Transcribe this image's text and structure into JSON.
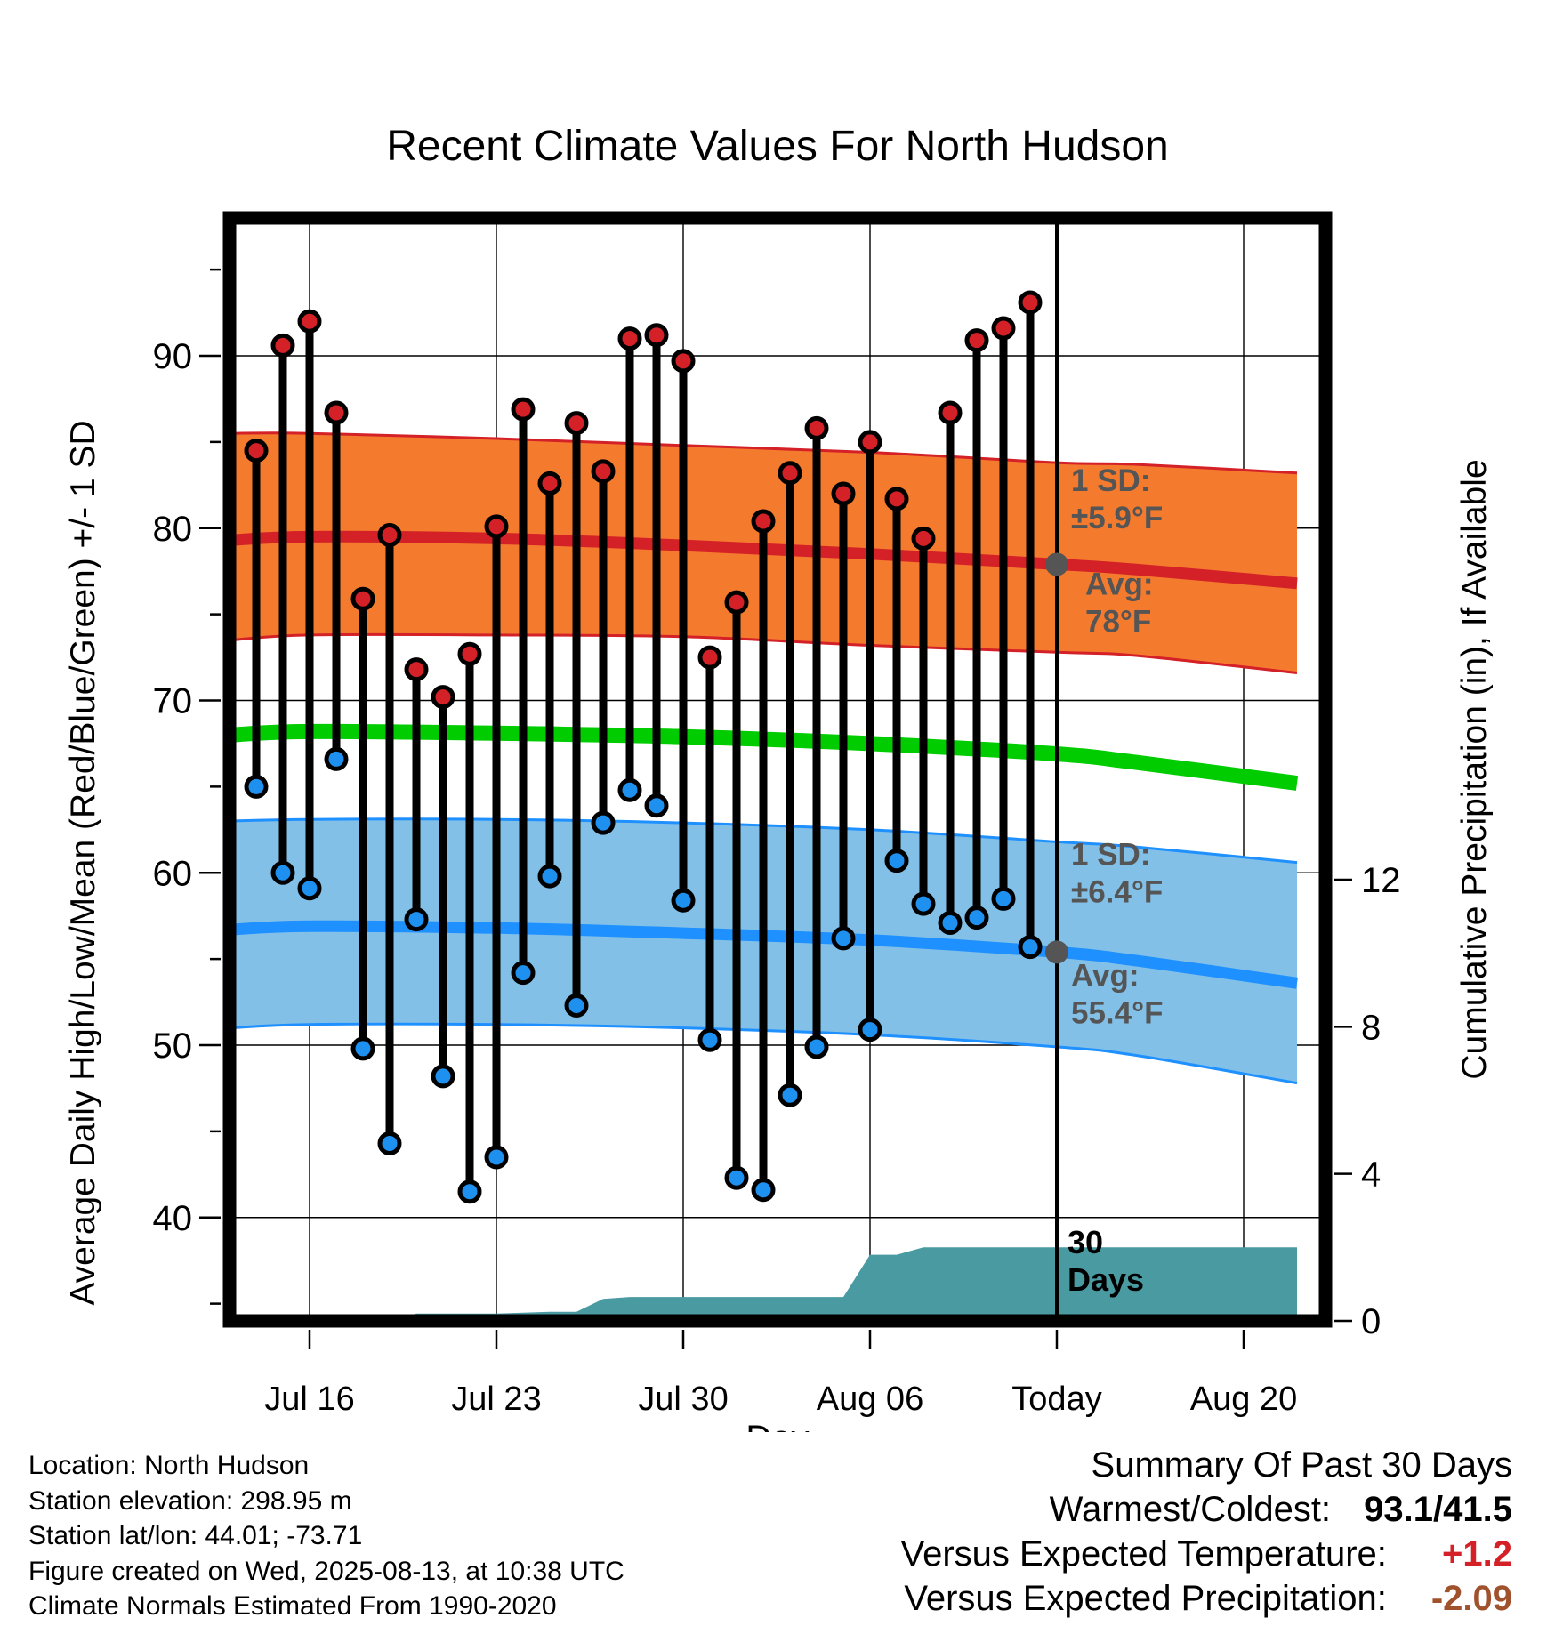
{
  "colors": {
    "high_dot": "#d42027",
    "low_dot": "#1e90f0",
    "high_band": "#f47a2e",
    "high_band_edge": "#d42027",
    "high_avg_line": "#d42027",
    "low_band": "#82c0e8",
    "low_band_edge": "#1e90ff",
    "low_avg_line": "#1e90ff",
    "mean_line": "#00cc00",
    "precip_fill": "#4a9aa2",
    "today_marker": "#555555",
    "annotation": "#555555",
    "temp_positive": "#d42027",
    "precip_negative": "#a0522d"
  },
  "chart_data": {
    "type": "line",
    "title": "Recent Climate Values For North Hudson",
    "xlabel": "Day",
    "ylabel": "Average Daily High/Low/Mean (Red/Blue/Green) +/- 1 SD",
    "y2label": "Cumulative Precipitation (in), If Available",
    "xlim": [
      "2025-07-13",
      "2025-08-22"
    ],
    "ylim": [
      34,
      98
    ],
    "y2lim": [
      0,
      30
    ],
    "x_ticks": [
      {
        "date": "2025-07-16",
        "label": "Jul 16"
      },
      {
        "date": "2025-07-23",
        "label": "Jul 23"
      },
      {
        "date": "2025-07-30",
        "label": "Jul 30"
      },
      {
        "date": "2025-08-06",
        "label": "Aug 06"
      },
      {
        "date": "2025-08-13",
        "label": "Today"
      },
      {
        "date": "2025-08-20",
        "label": "Aug 20"
      }
    ],
    "y_ticks": [
      40,
      50,
      60,
      70,
      80,
      90
    ],
    "y2_ticks": [
      0,
      4,
      8,
      12
    ],
    "grid": true,
    "today": "2025-08-13",
    "daily": {
      "dates": [
        "2025-07-14",
        "2025-07-15",
        "2025-07-16",
        "2025-07-17",
        "2025-07-18",
        "2025-07-19",
        "2025-07-20",
        "2025-07-21",
        "2025-07-22",
        "2025-07-23",
        "2025-07-24",
        "2025-07-25",
        "2025-07-26",
        "2025-07-27",
        "2025-07-28",
        "2025-07-29",
        "2025-07-30",
        "2025-07-31",
        "2025-08-01",
        "2025-08-02",
        "2025-08-03",
        "2025-08-04",
        "2025-08-05",
        "2025-08-06",
        "2025-08-07",
        "2025-08-08",
        "2025-08-09",
        "2025-08-10",
        "2025-08-11",
        "2025-08-12"
      ],
      "high": [
        84.5,
        90.6,
        92.0,
        86.7,
        75.9,
        79.6,
        71.8,
        70.2,
        72.7,
        80.1,
        86.9,
        82.6,
        86.1,
        83.3,
        91.0,
        91.2,
        89.7,
        72.5,
        75.7,
        80.4,
        83.2,
        85.8,
        82.0,
        85.0,
        81.7,
        79.4,
        86.7,
        90.9,
        91.6,
        93.1
      ],
      "low": [
        65.0,
        60.0,
        59.1,
        66.6,
        49.8,
        44.3,
        57.3,
        48.2,
        41.5,
        43.5,
        54.2,
        59.8,
        52.3,
        62.9,
        64.8,
        63.9,
        58.4,
        50.3,
        42.3,
        41.6,
        47.1,
        49.9,
        56.2,
        50.9,
        60.7,
        58.2,
        57.1,
        57.4,
        58.5,
        55.7
      ]
    },
    "normals": {
      "dates": [
        "2025-07-13",
        "2025-07-16",
        "2025-07-23",
        "2025-07-30",
        "2025-08-06",
        "2025-08-13",
        "2025-08-16",
        "2025-08-22"
      ],
      "high_avg": [
        79.3,
        79.5,
        79.4,
        79.0,
        78.5,
        77.9,
        77.6,
        76.8
      ],
      "high_plus_sd": [
        85.5,
        85.5,
        85.2,
        84.8,
        84.4,
        83.8,
        83.7,
        83.2
      ],
      "high_minus_sd": [
        73.5,
        73.8,
        73.8,
        73.7,
        73.2,
        72.8,
        72.6,
        71.6
      ],
      "mean_avg": [
        68.0,
        68.2,
        68.1,
        67.9,
        67.5,
        66.9,
        66.4,
        65.2
      ],
      "low_avg": [
        56.7,
        56.9,
        56.8,
        56.5,
        56.1,
        55.4,
        54.9,
        53.6
      ],
      "low_plus_sd": [
        63.0,
        63.1,
        63.1,
        62.9,
        62.5,
        61.8,
        61.5,
        60.6
      ],
      "low_minus_sd": [
        51.0,
        51.2,
        51.2,
        51.0,
        50.6,
        49.9,
        49.4,
        47.8
      ]
    },
    "precip": {
      "dates": [
        "2025-07-13",
        "2025-07-19",
        "2025-07-20",
        "2025-07-23",
        "2025-07-25",
        "2025-07-26",
        "2025-07-27",
        "2025-07-28",
        "2025-08-04",
        "2025-08-05",
        "2025-08-06",
        "2025-08-07",
        "2025-08-08",
        "2025-08-22"
      ],
      "cumulative": [
        0,
        0,
        0.2,
        0.2,
        0.25,
        0.25,
        0.6,
        0.65,
        0.65,
        0.65,
        1.8,
        1.8,
        2.0,
        2.0
      ]
    },
    "annotations": {
      "high_sd_label": "1 SD:",
      "high_sd_value": "±5.9°F",
      "high_avg_label": "Avg:",
      "high_avg_value": "78°F",
      "low_sd_label": "1 SD:",
      "low_sd_value": "±6.4°F",
      "low_avg_label": "Avg:",
      "low_avg_value": "55.4°F",
      "period_line1": "30",
      "period_line2": "Days"
    }
  },
  "footer": {
    "location": "Location: North Hudson",
    "elevation": "Station elevation: 298.95 m",
    "latlon": "Station lat/lon: 44.01; -73.71",
    "created": "Figure created on Wed, 2025-08-13, at 10:38 UTC",
    "normals_period": "Climate Normals Estimated From 1990-2020"
  },
  "summary": {
    "title": "Summary Of Past 30 Days",
    "warm_cold_label": "Warmest/Coldest:",
    "warm_cold_value": "93.1/41.5",
    "temp_label": "Versus Expected Temperature:",
    "temp_value": "+1.2",
    "precip_label": "Versus Expected Precipitation:",
    "precip_value": "-2.09"
  }
}
